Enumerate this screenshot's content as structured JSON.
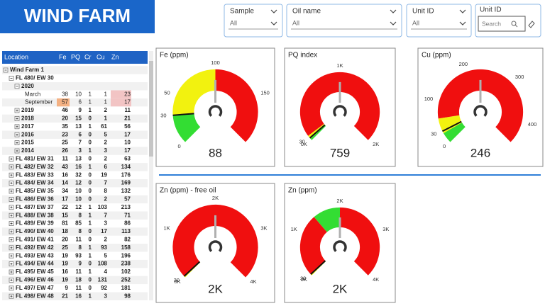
{
  "header": {
    "title": "WIND FARM"
  },
  "filters": [
    {
      "label": "Sample",
      "value": "All"
    },
    {
      "label": "Oil name",
      "value": "All"
    },
    {
      "label": "Unit ID",
      "value": "All"
    }
  ],
  "search": {
    "label": "Unit ID",
    "placeholder": "Search"
  },
  "table": {
    "columns": [
      "Location",
      "Fe",
      "PQ",
      "Cr",
      "Cu",
      "Zn"
    ],
    "rows": [
      {
        "label": "Wind Farm 1",
        "level": 0,
        "toggle": "open"
      },
      {
        "label": "FL 480/ EW 30",
        "level": 1,
        "toggle": "open"
      },
      {
        "label": "2020",
        "level": 2,
        "toggle": "open"
      },
      {
        "label": "March",
        "level": 3,
        "values": [
          38,
          10,
          1,
          1,
          23
        ],
        "cell_colors": [
          null,
          null,
          null,
          null,
          "#f2c4c4"
        ]
      },
      {
        "label": "September",
        "level": 3,
        "values": [
          57,
          6,
          1,
          1,
          17
        ],
        "cell_colors": [
          "#f4b183",
          null,
          null,
          null,
          "#f2c4c4"
        ]
      },
      {
        "label": "2019",
        "level": 2,
        "toggle": "closed",
        "values": [
          46,
          9,
          1,
          2,
          11
        ]
      },
      {
        "label": "2018",
        "level": 2,
        "toggle": "closed",
        "values": [
          20,
          15,
          0,
          1,
          21
        ]
      },
      {
        "label": "2017",
        "level": 2,
        "toggle": "closed",
        "values": [
          35,
          13,
          1,
          61,
          56
        ]
      },
      {
        "label": "2016",
        "level": 2,
        "toggle": "closed",
        "values": [
          23,
          6,
          0,
          5,
          17
        ]
      },
      {
        "label": "2015",
        "level": 2,
        "toggle": "closed",
        "values": [
          25,
          7,
          0,
          2,
          10
        ]
      },
      {
        "label": "2014",
        "level": 2,
        "toggle": "closed",
        "values": [
          26,
          3,
          1,
          3,
          17
        ]
      },
      {
        "label": "FL 481/ EW 31",
        "level": 1,
        "toggle": "closed",
        "values": [
          11,
          13,
          0,
          2,
          63
        ]
      },
      {
        "label": "FL 482/ EW 32",
        "level": 1,
        "toggle": "closed",
        "values": [
          43,
          16,
          1,
          6,
          134
        ]
      },
      {
        "label": "FL 483/ EW 33",
        "level": 1,
        "toggle": "closed",
        "values": [
          16,
          32,
          0,
          19,
          176
        ]
      },
      {
        "label": "FL 484/ EW 34",
        "level": 1,
        "toggle": "closed",
        "values": [
          14,
          12,
          0,
          7,
          169
        ]
      },
      {
        "label": "FL 485/ EW 35",
        "level": 1,
        "toggle": "closed",
        "values": [
          34,
          10,
          0,
          8,
          132
        ]
      },
      {
        "label": "FL 486/ EW 36",
        "level": 1,
        "toggle": "closed",
        "values": [
          17,
          10,
          0,
          2,
          57
        ]
      },
      {
        "label": "FL 487/ EW 37",
        "level": 1,
        "toggle": "closed",
        "values": [
          22,
          12,
          1,
          103,
          213
        ]
      },
      {
        "label": "FL 488/ EW 38",
        "level": 1,
        "toggle": "closed",
        "values": [
          15,
          8,
          1,
          7,
          71
        ]
      },
      {
        "label": "FL 489/ EW 39",
        "level": 1,
        "toggle": "closed",
        "values": [
          81,
          85,
          1,
          3,
          86
        ]
      },
      {
        "label": "FL 490/ EW 40",
        "level": 1,
        "toggle": "closed",
        "values": [
          18,
          8,
          0,
          17,
          113
        ]
      },
      {
        "label": "FL 491/ EW 41",
        "level": 1,
        "toggle": "closed",
        "values": [
          20,
          11,
          0,
          2,
          82
        ]
      },
      {
        "label": "FL 492/ EW 42",
        "level": 1,
        "toggle": "closed",
        "values": [
          25,
          8,
          1,
          93,
          158
        ]
      },
      {
        "label": "FL 493/ EW 43",
        "level": 1,
        "toggle": "closed",
        "values": [
          19,
          93,
          1,
          5,
          196
        ]
      },
      {
        "label": "FL 494/ EW 44",
        "level": 1,
        "toggle": "closed",
        "values": [
          19,
          9,
          0,
          108,
          238
        ]
      },
      {
        "label": "FL 495/ EW 45",
        "level": 1,
        "toggle": "closed",
        "values": [
          16,
          11,
          1,
          4,
          102
        ]
      },
      {
        "label": "FL 496/ EW 46",
        "level": 1,
        "toggle": "closed",
        "values": [
          19,
          18,
          0,
          131,
          252
        ]
      },
      {
        "label": "FL 497/ EW 47",
        "level": 1,
        "toggle": "closed",
        "values": [
          9,
          11,
          0,
          92,
          181
        ]
      },
      {
        "label": "FL 498/ EW 48",
        "level": 1,
        "toggle": "closed",
        "values": [
          21,
          16,
          1,
          3,
          98
        ]
      }
    ]
  },
  "gauges": [
    {
      "title": "Fe (ppm)",
      "value": 88,
      "min": 0,
      "max": 200,
      "marker": 30,
      "ticks": [
        0,
        30,
        50,
        100,
        150
      ],
      "bands": [
        {
          "from": 0,
          "to": 30,
          "color": "#33dd33"
        },
        {
          "from": 30,
          "to": 100,
          "color": "#f2f20f"
        },
        {
          "from": 100,
          "to": 200,
          "color": "#f00f0f"
        }
      ]
    },
    {
      "title": "PQ index",
      "value": 759,
      "min": 0,
      "max": 2000,
      "marker": 30,
      "ticks": [
        {
          "value": 0,
          "label": "0K"
        },
        30,
        {
          "value": 1000,
          "label": "1K"
        },
        {
          "value": 2000,
          "label": "2K"
        }
      ],
      "bands": [
        {
          "from": 0,
          "to": 20,
          "color": "#33dd33"
        },
        {
          "from": 20,
          "to": 60,
          "color": "#f2f20f"
        },
        {
          "from": 60,
          "to": 2000,
          "color": "#f00f0f"
        }
      ]
    },
    {
      "title": "Cu (ppm)",
      "value": 246,
      "min": 0,
      "max": 450,
      "marker": 30,
      "ticks": [
        0,
        30,
        100,
        200,
        300,
        400
      ],
      "bands": [
        {
          "from": 0,
          "to": 25,
          "color": "#33dd33"
        },
        {
          "from": 25,
          "to": 60,
          "color": "#f2f20f"
        },
        {
          "from": 60,
          "to": 450,
          "color": "#f00f0f"
        }
      ]
    },
    {
      "title": "Zn (ppm) - free oil",
      "value": 2000,
      "value_label": "2K",
      "min": 0,
      "max": 4000,
      "marker": 30,
      "ticks": [
        {
          "value": 0,
          "label": "0K"
        },
        30,
        {
          "value": 1000,
          "label": "1K"
        },
        {
          "value": 2000,
          "label": "2K"
        },
        {
          "value": 3000,
          "label": "3K"
        },
        {
          "value": 4000,
          "label": "4K"
        }
      ],
      "bands": [
        {
          "from": 0,
          "to": 30,
          "color": "#f2f20f"
        },
        {
          "from": 30,
          "to": 4000,
          "color": "#f00f0f"
        }
      ]
    },
    {
      "title": "Zn (ppm)",
      "value": 2000,
      "value_label": "2K",
      "min": 0,
      "max": 4000,
      "marker": 30,
      "ticks": [
        {
          "value": 0,
          "label": "0K"
        },
        30,
        {
          "value": 1000,
          "label": "1K"
        },
        {
          "value": 2000,
          "label": "2K"
        },
        {
          "value": 3000,
          "label": "3K"
        },
        {
          "value": 4000,
          "label": "4K"
        }
      ],
      "bands": [
        {
          "from": 0,
          "to": 30,
          "color": "#f2f20f"
        },
        {
          "from": 30,
          "to": 1400,
          "color": "#f00f0f"
        },
        {
          "from": 1400,
          "to": 2000,
          "color": "#33dd33"
        },
        {
          "from": 2000,
          "to": 4000,
          "color": "#f00f0f"
        }
      ]
    }
  ]
}
